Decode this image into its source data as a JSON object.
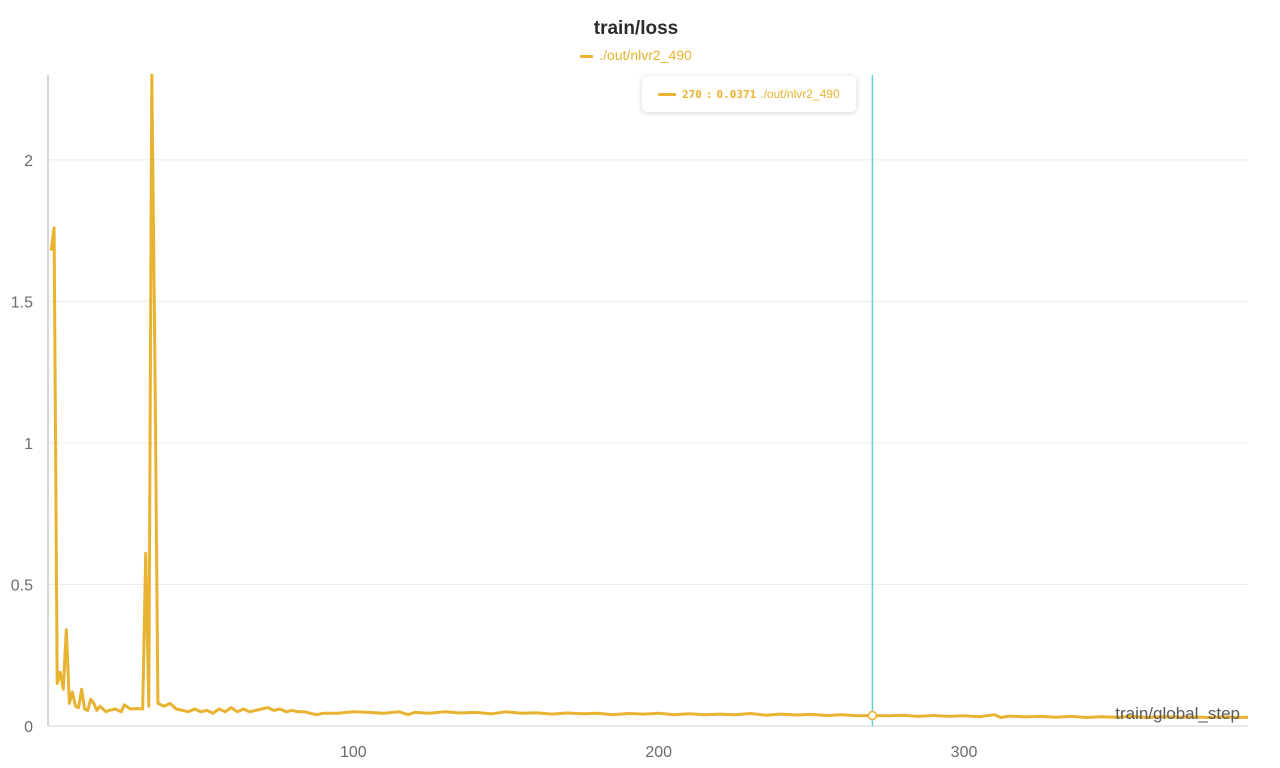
{
  "chart_data": {
    "type": "line",
    "title": "train/loss",
    "xlabel": "train/global_step",
    "ylabel": "",
    "xlim": [
      0,
      393
    ],
    "ylim": [
      0,
      2.3
    ],
    "x_ticks": [
      100,
      200,
      300
    ],
    "y_ticks": [
      0,
      0.5,
      1,
      1.5,
      2
    ],
    "y_tick_labels": [
      "0",
      "0.5",
      "1",
      "1.5",
      "2"
    ],
    "grid": "horizontal",
    "legend_position": "top-center",
    "series": [
      {
        "name": "./out/nlvr2_490",
        "color": "#e8b330",
        "points": [
          [
            1,
            1.68
          ],
          [
            2,
            1.76
          ],
          [
            3,
            0.15
          ],
          [
            4,
            0.19
          ],
          [
            5,
            0.13
          ],
          [
            6,
            0.34
          ],
          [
            7,
            0.08
          ],
          [
            8,
            0.12
          ],
          [
            9,
            0.07
          ],
          [
            10,
            0.065
          ],
          [
            11,
            0.13
          ],
          [
            12,
            0.06
          ],
          [
            13,
            0.055
          ],
          [
            14,
            0.095
          ],
          [
            15,
            0.08
          ],
          [
            16,
            0.055
          ],
          [
            17,
            0.07
          ],
          [
            18,
            0.06
          ],
          [
            19,
            0.05
          ],
          [
            20,
            0.055
          ],
          [
            22,
            0.06
          ],
          [
            24,
            0.05
          ],
          [
            25,
            0.075
          ],
          [
            27,
            0.06
          ],
          [
            29,
            0.062
          ],
          [
            31,
            0.06
          ],
          [
            32,
            0.61
          ],
          [
            33,
            0.07
          ],
          [
            34,
            2.3
          ],
          [
            35,
            1.3
          ],
          [
            36,
            0.08
          ],
          [
            38,
            0.07
          ],
          [
            40,
            0.08
          ],
          [
            42,
            0.06
          ],
          [
            44,
            0.055
          ],
          [
            46,
            0.05
          ],
          [
            48,
            0.06
          ],
          [
            50,
            0.05
          ],
          [
            52,
            0.055
          ],
          [
            54,
            0.045
          ],
          [
            56,
            0.06
          ],
          [
            58,
            0.05
          ],
          [
            60,
            0.065
          ],
          [
            62,
            0.05
          ],
          [
            64,
            0.06
          ],
          [
            66,
            0.05
          ],
          [
            68,
            0.055
          ],
          [
            70,
            0.06
          ],
          [
            72,
            0.065
          ],
          [
            74,
            0.055
          ],
          [
            76,
            0.06
          ],
          [
            78,
            0.05
          ],
          [
            80,
            0.055
          ],
          [
            82,
            0.05
          ],
          [
            84,
            0.05
          ],
          [
            86,
            0.045
          ],
          [
            88,
            0.04
          ],
          [
            90,
            0.045
          ],
          [
            95,
            0.045
          ],
          [
            100,
            0.05
          ],
          [
            105,
            0.048
          ],
          [
            110,
            0.045
          ],
          [
            115,
            0.05
          ],
          [
            118,
            0.04
          ],
          [
            120,
            0.048
          ],
          [
            125,
            0.045
          ],
          [
            130,
            0.05
          ],
          [
            135,
            0.046
          ],
          [
            140,
            0.048
          ],
          [
            145,
            0.043
          ],
          [
            150,
            0.05
          ],
          [
            155,
            0.045
          ],
          [
            160,
            0.047
          ],
          [
            165,
            0.042
          ],
          [
            170,
            0.046
          ],
          [
            175,
            0.043
          ],
          [
            180,
            0.045
          ],
          [
            185,
            0.04
          ],
          [
            190,
            0.044
          ],
          [
            195,
            0.042
          ],
          [
            200,
            0.045
          ],
          [
            205,
            0.04
          ],
          [
            210,
            0.043
          ],
          [
            215,
            0.04
          ],
          [
            220,
            0.042
          ],
          [
            225,
            0.04
          ],
          [
            230,
            0.044
          ],
          [
            235,
            0.038
          ],
          [
            240,
            0.042
          ],
          [
            245,
            0.039
          ],
          [
            250,
            0.041
          ],
          [
            255,
            0.037
          ],
          [
            260,
            0.04
          ],
          [
            265,
            0.036
          ],
          [
            270,
            0.0371
          ],
          [
            275,
            0.036
          ],
          [
            280,
            0.038
          ],
          [
            285,
            0.034
          ],
          [
            290,
            0.037
          ],
          [
            295,
            0.034
          ],
          [
            300,
            0.036
          ],
          [
            305,
            0.033
          ],
          [
            310,
            0.04
          ],
          [
            312,
            0.03
          ],
          [
            315,
            0.035
          ],
          [
            320,
            0.032
          ],
          [
            325,
            0.034
          ],
          [
            330,
            0.031
          ],
          [
            335,
            0.034
          ],
          [
            340,
            0.03
          ],
          [
            345,
            0.033
          ],
          [
            350,
            0.031
          ],
          [
            355,
            0.034
          ],
          [
            360,
            0.03
          ],
          [
            365,
            0.033
          ],
          [
            370,
            0.031
          ],
          [
            375,
            0.032
          ],
          [
            380,
            0.03
          ],
          [
            385,
            0.032
          ],
          [
            390,
            0.03
          ],
          [
            393,
            0.031
          ]
        ]
      }
    ],
    "hover": {
      "x": 270,
      "y": "0.0371",
      "x_label": "270",
      "cursor_color": "#5fd3d8"
    }
  }
}
